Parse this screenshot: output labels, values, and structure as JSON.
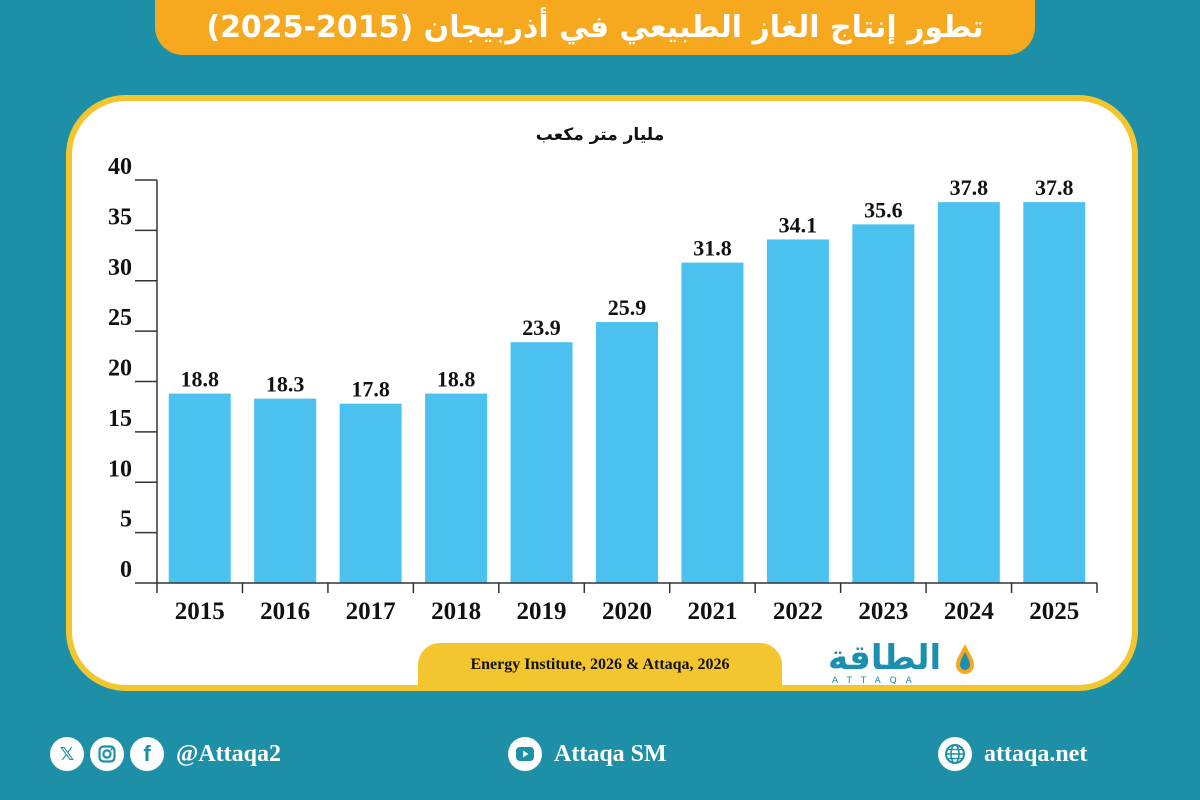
{
  "title": "تطور إنتاج الغاز الطبيعي في أذربيجان (2015-2025)",
  "chart_data": {
    "type": "bar",
    "unit_label": "مليار متر مكعب",
    "categories": [
      "2015",
      "2016",
      "2017",
      "2018",
      "2019",
      "2020",
      "2021",
      "2022",
      "2023",
      "2024",
      "2025"
    ],
    "values": [
      18.8,
      18.3,
      17.8,
      18.8,
      23.9,
      25.9,
      31.8,
      34.1,
      35.6,
      37.8,
      37.8
    ],
    "value_labels": [
      "18.8",
      "18.3",
      "17.8",
      "18.8",
      "23.9",
      "25.9",
      "31.8",
      "34.1",
      "35.6",
      "37.8",
      "37.8"
    ],
    "yticks": [
      "0",
      "5",
      "10",
      "15",
      "20",
      "25",
      "30",
      "35",
      "40"
    ],
    "ylim": [
      0,
      40
    ],
    "bar_color": "#4bc1ef",
    "grid": false
  },
  "source": "Energy Institute, 2026 & Attaqa, 2026",
  "logo": {
    "brand": "الطاقة",
    "latin": "ATTAQA"
  },
  "footer": {
    "social_handle": "@Attaqa2",
    "youtube": "Attaqa SM",
    "website": "attaqa.net",
    "icons": [
      "x-icon",
      "instagram-icon",
      "facebook-icon",
      "youtube-icon",
      "globe-icon"
    ]
  },
  "colors": {
    "background": "#1d90a8",
    "title_bar": "#f6a81f",
    "panel_border": "#f3c62f"
  }
}
